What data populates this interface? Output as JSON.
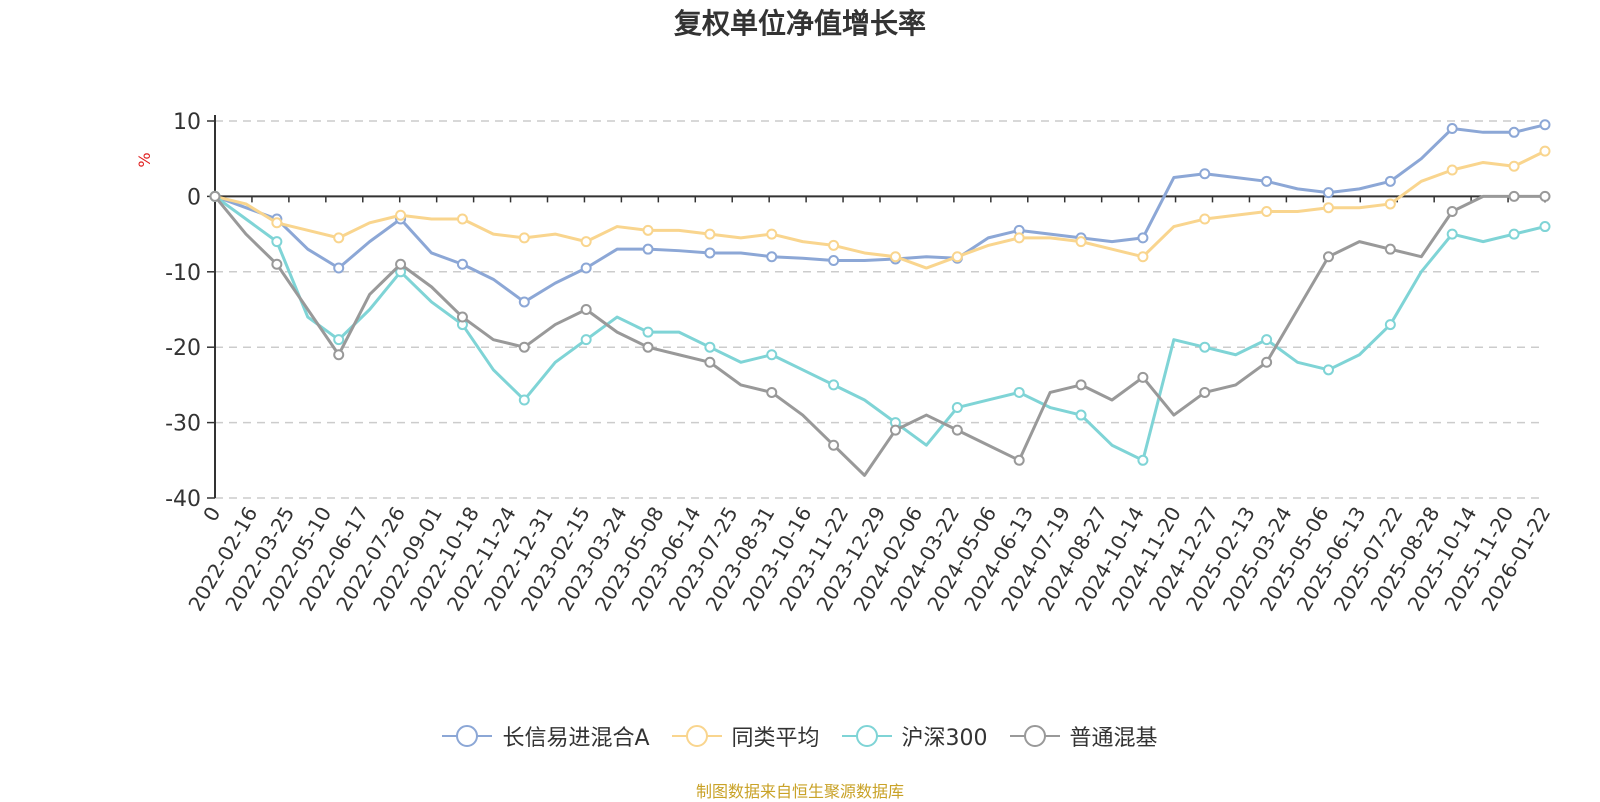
{
  "chart_data": {
    "type": "line",
    "title": "复权单位净值增长率",
    "ylabel": "%",
    "ylim": [
      -40,
      10
    ],
    "yticks": [
      10,
      0,
      -10,
      -20,
      -30,
      -40
    ],
    "grid": "horizontal-dashed",
    "legend_position": "bottom-center",
    "x_tick_labels": [
      "0",
      "2022-02-16",
      "2022-03-25",
      "2022-05-10",
      "2022-06-17",
      "2022-07-26",
      "2022-09-01",
      "2022-10-18",
      "2022-11-24",
      "2022-12-31",
      "2023-02-15",
      "2023-03-24",
      "2023-05-08",
      "2023-06-14",
      "2023-07-25",
      "2023-08-31",
      "2023-10-16",
      "2023-11-22",
      "2023-12-29",
      "2024-02-06",
      "2024-03-22",
      "2024-05-06",
      "2024-06-13",
      "2024-07-19",
      "2024-08-27",
      "2024-10-14",
      "2024-11-20",
      "2024-12-27",
      "2025-02-13",
      "2025-03-24",
      "2025-05-06",
      "2025-06-13",
      "2025-07-22",
      "2025-08-28",
      "2025-10-14",
      "2025-11-20",
      "2026-01-22"
    ],
    "series": [
      {
        "name": "长信易进混合A",
        "color": "#8ca7d6",
        "values": [
          0,
          -1.5,
          -3,
          -7,
          -9.5,
          -6,
          -3,
          -7.5,
          -9,
          -11,
          -14,
          -11.5,
          -9.5,
          -7,
          -7,
          -7.2,
          -7.5,
          -7.5,
          -8,
          -8.2,
          -8.5,
          -8.5,
          -8.3,
          -8,
          -8.2,
          -5.5,
          -4.5,
          -5,
          -5.5,
          -6,
          -5.5,
          2.5,
          3,
          2.5,
          2,
          1,
          0.5,
          1,
          2,
          5,
          9,
          8.5,
          8.5,
          9.5
        ]
      },
      {
        "name": "同类平均",
        "color": "#f9d58e",
        "values": [
          0,
          -1,
          -3.5,
          -4.5,
          -5.5,
          -3.5,
          -2.5,
          -3,
          -3,
          -5,
          -5.5,
          -5,
          -6,
          -4,
          -4.5,
          -4.5,
          -5,
          -5.5,
          -5,
          -6,
          -6.5,
          -7.5,
          -8,
          -9.5,
          -8,
          -6.5,
          -5.5,
          -5.5,
          -6,
          -7,
          -8,
          -4,
          -3,
          -2.5,
          -2,
          -2,
          -1.5,
          -1.5,
          -1,
          2,
          3.5,
          4.5,
          4,
          6
        ]
      },
      {
        "name": "沪深300",
        "color": "#7fd4d6",
        "values": [
          0,
          -3,
          -6,
          -16,
          -19,
          -15,
          -10,
          -14,
          -17,
          -23,
          -27,
          -22,
          -19,
          -16,
          -18,
          -18,
          -20,
          -22,
          -21,
          -23,
          -25,
          -27,
          -30,
          -33,
          -28,
          -27,
          -26,
          -28,
          -29,
          -33,
          -35,
          -19,
          -20,
          -21,
          -19,
          -22,
          -23,
          -21,
          -17,
          -10,
          -5,
          -6,
          -5,
          -4
        ]
      },
      {
        "name": "普通混基",
        "color": "#999999",
        "values": [
          0,
          -5,
          -9,
          -15,
          -21,
          -13,
          -9,
          -12,
          -16,
          -19,
          -20,
          -17,
          -15,
          -18,
          -20,
          -21,
          -22,
          -25,
          -26,
          -29,
          -33,
          -37,
          -31,
          -29,
          -31,
          -33,
          -35,
          -26,
          -25,
          -27,
          -24,
          -29,
          -26,
          -25,
          -22,
          -15,
          -8,
          -6,
          -7,
          -8,
          -2,
          0,
          0,
          0
        ]
      }
    ]
  },
  "source_note": "制图数据来自恒生聚源数据库"
}
